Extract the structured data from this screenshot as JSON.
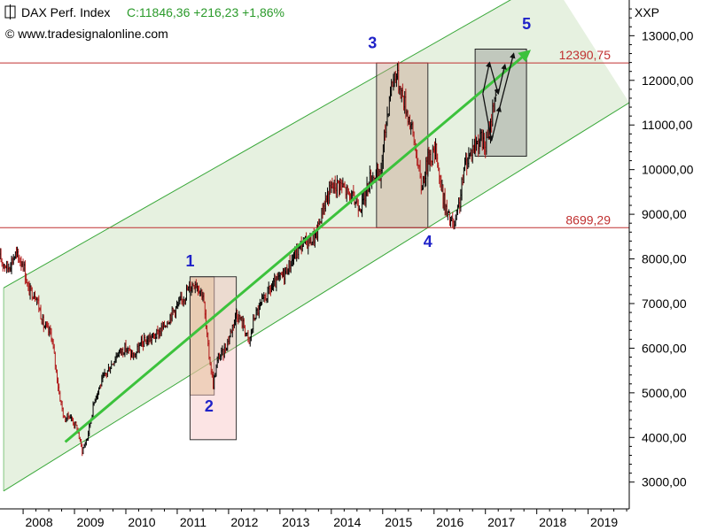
{
  "header": {
    "instrument": "DAX Perf. Index",
    "quote": "C:11846,36 +216,23 +1,86%",
    "source": "© www.tradesignalonline.com",
    "exchange": "XXP"
  },
  "colors": {
    "price_up": "#000000",
    "price_down": "#b01a1a",
    "channel_fill": "#e6f1e0",
    "channel_line": "#3aa83a",
    "trend_arrow": "#3cc23c",
    "level_line": "#c03030",
    "wave_label": "#1f22c8",
    "quote_text": "#2a9a2a"
  },
  "chart_data": {
    "type": "line",
    "title": "DAX Perf. Index",
    "xlabel": "",
    "ylabel": "",
    "x_ticks": [
      "2008",
      "2009",
      "2010",
      "2011",
      "2012",
      "2013",
      "2014",
      "2015",
      "2016",
      "2017",
      "2018",
      "2019"
    ],
    "y_ticks": [
      "3000,00",
      "4000,00",
      "5000,00",
      "6000,00",
      "7000,00",
      "8000,00",
      "9000,00",
      "10000,00",
      "11000,00",
      "12000,00",
      "13000,00"
    ],
    "y_tick_values": [
      3000,
      4000,
      5000,
      6000,
      7000,
      8000,
      9000,
      10000,
      11000,
      12000,
      13000
    ],
    "xlim": [
      2007.55,
      2019.8
    ],
    "ylim": [
      2400,
      13800
    ],
    "grid": false,
    "series": [
      {
        "x": [
          2007.55,
          2007.7,
          2007.85,
          2008.0,
          2008.1,
          2008.25,
          2008.4,
          2008.55,
          2008.7,
          2008.8,
          2008.9,
          2009.05,
          2009.15,
          2009.25,
          2009.4,
          2009.55,
          2009.7,
          2009.85,
          2010.0,
          2010.15,
          2010.3,
          2010.45,
          2010.6,
          2010.75,
          2010.9,
          2011.05,
          2011.2,
          2011.35,
          2011.5,
          2011.6,
          2011.7,
          2011.8,
          2011.9,
          2012.0,
          2012.15,
          2012.3,
          2012.4,
          2012.5,
          2012.65,
          2012.8,
          2012.95,
          2013.1,
          2013.25,
          2013.4,
          2013.55,
          2013.7,
          2013.85,
          2014.0,
          2014.15,
          2014.3,
          2014.45,
          2014.6,
          2014.75,
          2014.85,
          2014.95,
          2015.05,
          2015.15,
          2015.25,
          2015.35,
          2015.45,
          2015.55,
          2015.65,
          2015.75,
          2015.9,
          2016.05,
          2016.12,
          2016.25,
          2016.4,
          2016.5,
          2016.6,
          2016.75,
          2016.9,
          2017.0,
          2017.1,
          2017.2
        ],
        "values": [
          8000,
          7800,
          8100,
          7900,
          7300,
          7200,
          6500,
          6300,
          5000,
          4400,
          4500,
          4200,
          3700,
          4000,
          4900,
          5300,
          5600,
          5900,
          6000,
          5800,
          6100,
          6200,
          6300,
          6500,
          6800,
          7000,
          7300,
          7500,
          7200,
          6000,
          5200,
          5800,
          5900,
          6200,
          6800,
          6500,
          6100,
          6700,
          7000,
          7300,
          7500,
          7700,
          8000,
          8300,
          8400,
          8500,
          9200,
          9600,
          9700,
          9500,
          9300,
          9200,
          9800,
          9900,
          9800,
          10900,
          11800,
          12200,
          11800,
          11400,
          11000,
          10400,
          9600,
          10300,
          10400,
          9700,
          9000,
          8700,
          9300,
          10100,
          10500,
          10700,
          10500,
          11000,
          11800
        ]
      }
    ],
    "levels": [
      {
        "label": "12390,75",
        "value": 12390.75
      },
      {
        "label": "8699,29",
        "value": 8699.29
      }
    ],
    "waves": [
      {
        "label": "1",
        "x": 2011.25,
        "y": 7830
      },
      {
        "label": "2",
        "x": 2011.62,
        "y": 4580
      },
      {
        "label": "3",
        "x": 2014.8,
        "y": 12720
      },
      {
        "label": "4",
        "x": 2015.88,
        "y": 8270
      },
      {
        "label": "5",
        "x": 2017.8,
        "y": 13150
      }
    ],
    "channel": {
      "lower": [
        [
          2007.62,
          2800
        ],
        [
          2019.8,
          11500
        ]
      ],
      "upper": [
        [
          2007.62,
          7350
        ],
        [
          2018.25,
          14300
        ]
      ]
    },
    "trend_arrow": [
      [
        2008.82,
        3900
      ],
      [
        2017.85,
        12650
      ]
    ],
    "boxes": [
      {
        "x0": 2011.25,
        "x1": 2011.72,
        "y0": 4950,
        "y1": 7600,
        "fill": "#dcc890",
        "opacity": 0.55,
        "stroke": "#555555"
      },
      {
        "x0": 2011.25,
        "x1": 2012.15,
        "y0": 3950,
        "y1": 7600,
        "fill": "#f5b3b3",
        "opacity": 0.35,
        "stroke": "#333333"
      },
      {
        "x0": 2014.88,
        "x1": 2015.88,
        "y0": 8699.29,
        "y1": 12390.75,
        "fill": "#c39a86",
        "opacity": 0.4,
        "stroke": "#333333"
      },
      {
        "x0": 2016.8,
        "x1": 2017.8,
        "y0": 10300,
        "y1": 12700,
        "fill": "#7a7a7a",
        "opacity": 0.35,
        "stroke": "#222222"
      }
    ],
    "forecast_arrows": [
      [
        [
          2016.95,
          11700
        ],
        [
          2017.08,
          12400
        ]
      ],
      [
        [
          2017.08,
          12400
        ],
        [
          2017.25,
          11700
        ]
      ],
      [
        [
          2017.25,
          11700
        ],
        [
          2017.38,
          12350
        ]
      ],
      [
        [
          2016.95,
          11700
        ],
        [
          2017.12,
          10650
        ]
      ],
      [
        [
          2017.12,
          10650
        ],
        [
          2017.28,
          11400
        ]
      ],
      [
        [
          2017.28,
          11400
        ],
        [
          2017.55,
          12600
        ]
      ]
    ]
  }
}
